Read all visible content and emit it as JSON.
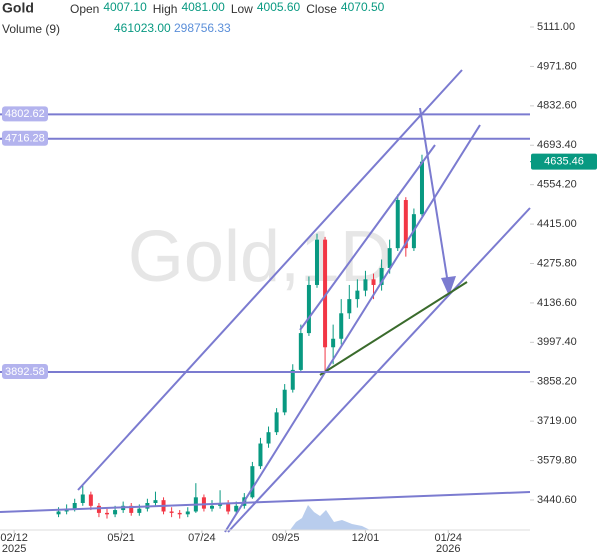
{
  "chart_data": {
    "type": "candlestick",
    "symbol": "Gold",
    "watermark": "Gold,1D",
    "header": [
      {
        "label": "Open",
        "value": "4007.10"
      },
      {
        "label": "High",
        "value": "4081.00"
      },
      {
        "label": "Low",
        "value": "4005.60"
      },
      {
        "label": "Close",
        "value": "4070.50"
      }
    ],
    "volume": {
      "label": "Volume (9)",
      "values": [
        "461023.00",
        "298756.33"
      ]
    },
    "up_color": "#089981",
    "down_color": "#f23645",
    "line_color": "#7b7bd0",
    "xlim": [
      -7.25,
      58.375
    ],
    "xticks": [
      {
        "value": -5.5,
        "label": "02/12",
        "year": "2025"
      },
      {
        "value": 7.75,
        "label": "05/21"
      },
      {
        "value": 17.75,
        "label": "07/24"
      },
      {
        "value": 28.125,
        "label": "09/25"
      },
      {
        "value": 38,
        "label": "12/01"
      },
      {
        "value": 48.25,
        "label": "01/24",
        "year": "2026"
      }
    ],
    "ylim": [
      3334.6,
      5206.4
    ],
    "yticks": [
      {
        "value": 5111,
        "label": "5111.00"
      },
      {
        "value": 4971.8,
        "label": "4971.80"
      },
      {
        "value": 4832.6,
        "label": "4832.60"
      },
      {
        "value": 4693.4,
        "label": "4693.40"
      },
      {
        "value": 4554.2,
        "label": "4554.20"
      },
      {
        "value": 4415,
        "label": "4415.00"
      },
      {
        "value": 4275.8,
        "label": "4275.80"
      },
      {
        "value": 4136.6,
        "label": "4136.60"
      },
      {
        "value": 3997.4,
        "label": "3997.40"
      },
      {
        "value": 3858.2,
        "label": "3858.20"
      },
      {
        "value": 3719,
        "label": "3719.00"
      },
      {
        "value": 3579.8,
        "label": "3579.80"
      },
      {
        "value": 3440.6,
        "label": "3440.60"
      }
    ],
    "levels": [
      {
        "value": 4802.62,
        "label": "4802.62"
      },
      {
        "value": 4716.28,
        "label": "4716.28"
      },
      {
        "value": 3892.58,
        "label": "3892.58"
      }
    ],
    "last_price": 4635.46,
    "open": [
      3390,
      3400,
      3410,
      3430,
      3460,
      3420,
      3395,
      3390,
      3405,
      3420,
      3395,
      3410,
      3430,
      3440,
      3400,
      3395,
      3390,
      3400,
      3450,
      3410,
      3420,
      3430,
      3400,
      3420,
      3450,
      3560,
      3640,
      3680,
      3750,
      3830,
      3900,
      4030,
      4200,
      4360,
      3980,
      4010,
      4100,
      4150,
      4180,
      4220,
      4200,
      4260,
      4330,
      4500,
      4330,
      4450
    ],
    "high": [
      3415,
      3425,
      3445,
      3494,
      3470,
      3430,
      3410,
      3420,
      3435,
      3430,
      3425,
      3445,
      3470,
      3450,
      3415,
      3405,
      3415,
      3500,
      3460,
      3440,
      3475,
      3440,
      3435,
      3465,
      3575,
      3660,
      3700,
      3765,
      3850,
      3920,
      4060,
      4230,
      4381,
      4370,
      4060,
      4150,
      4200,
      4220,
      4250,
      4240,
      4290,
      4360,
      4520,
      4510,
      4470,
      4660
    ],
    "low": [
      3380,
      3390,
      3400,
      3420,
      3405,
      3380,
      3375,
      3380,
      3395,
      3385,
      3385,
      3400,
      3420,
      3390,
      3380,
      3375,
      3380,
      3395,
      3400,
      3400,
      3410,
      3390,
      3390,
      3410,
      3445,
      3550,
      3625,
      3670,
      3740,
      3820,
      3890,
      4020,
      4190,
      3890,
      3920,
      3990,
      4080,
      4120,
      4160,
      4150,
      4180,
      4240,
      4320,
      4300,
      4320,
      4440
    ],
    "close": [
      3400,
      3410,
      3430,
      3460,
      3420,
      3395,
      3390,
      3405,
      3420,
      3395,
      3410,
      3430,
      3440,
      3400,
      3395,
      3390,
      3400,
      3450,
      3410,
      3420,
      3430,
      3400,
      3420,
      3450,
      3560,
      3640,
      3680,
      3750,
      3830,
      3900,
      4030,
      4200,
      4360,
      3980,
      4010,
      4100,
      4150,
      4180,
      4220,
      4200,
      4260,
      4330,
      4500,
      4330,
      4450,
      4635.46
    ]
  }
}
